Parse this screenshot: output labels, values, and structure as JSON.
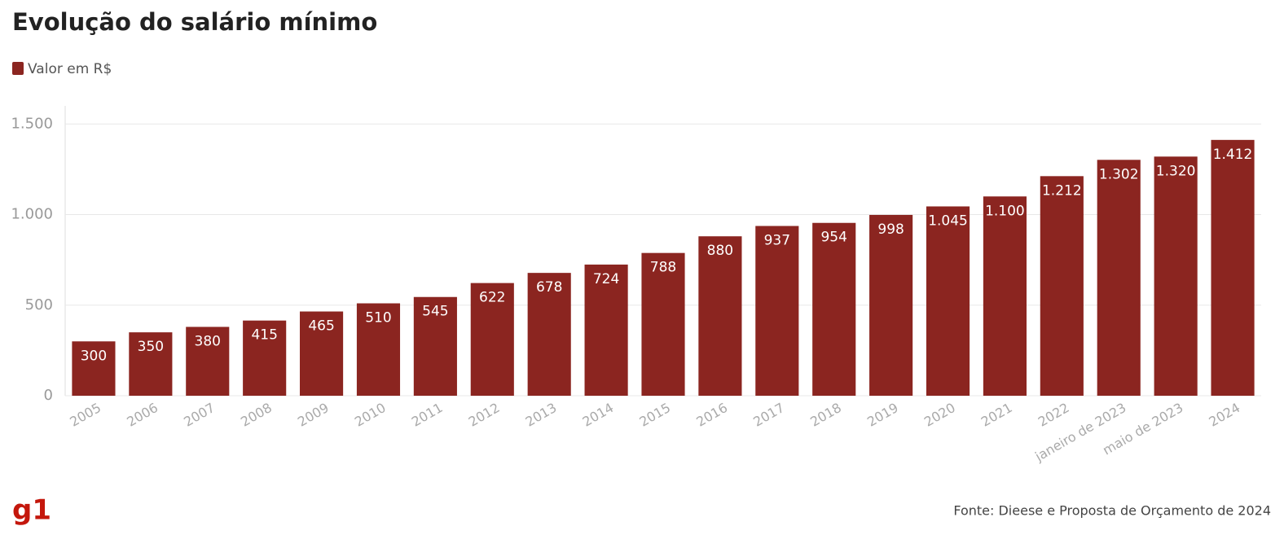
{
  "chart_data": {
    "type": "bar",
    "title": "Evolução do salário mínimo",
    "series": [
      {
        "name": "Valor em R$",
        "color": "#8b2520",
        "values": [
          300,
          350,
          380,
          415,
          465,
          510,
          545,
          622,
          678,
          724,
          788,
          880,
          937,
          954,
          998,
          1045,
          1100,
          1212,
          1302,
          1320,
          1412
        ],
        "value_labels": [
          "300",
          "350",
          "380",
          "415",
          "465",
          "510",
          "545",
          "622",
          "678",
          "724",
          "788",
          "880",
          "937",
          "954",
          "998",
          "1.045",
          "1.100",
          "1.212",
          "1.302",
          "1.320",
          "1.412"
        ]
      }
    ],
    "categories": [
      "2005",
      "2006",
      "2007",
      "2008",
      "2009",
      "2010",
      "2011",
      "2012",
      "2013",
      "2014",
      "2015",
      "2016",
      "2017",
      "2018",
      "2019",
      "2020",
      "2021",
      "2022",
      "janeiro de 2023",
      "maio de 2023",
      "2024"
    ],
    "ylim": [
      0,
      1600
    ],
    "yticks": [
      0,
      500,
      {
        "value": 1000,
        "label": "1.000"
      },
      {
        "value": 1500,
        "label": "1.500"
      }
    ],
    "grid": true,
    "source": "Fonte: Dieese e Proposta de Orçamento de 2024",
    "logo": "g1"
  }
}
